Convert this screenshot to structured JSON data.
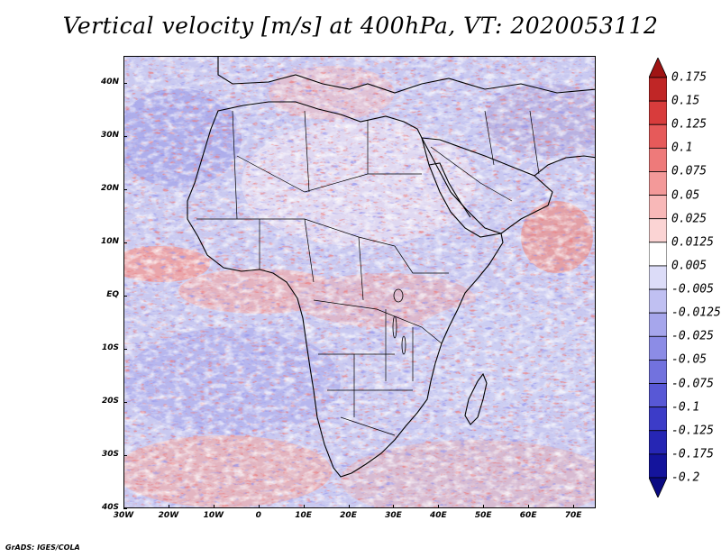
{
  "title": "Vertical velocity [m/s] at 400hPa, VT: 2020053112",
  "credit": "GrADS: IGES/COLA",
  "map": {
    "lat_range": [
      -40,
      45
    ],
    "lon_range": [
      -30,
      75
    ],
    "lat_labels": [
      {
        "value": 40,
        "text": "40N"
      },
      {
        "value": 30,
        "text": "30N"
      },
      {
        "value": 20,
        "text": "20N"
      },
      {
        "value": 10,
        "text": "10N"
      },
      {
        "value": 0,
        "text": "EQ"
      },
      {
        "value": -10,
        "text": "10S"
      },
      {
        "value": -20,
        "text": "20S"
      },
      {
        "value": -30,
        "text": "30S"
      },
      {
        "value": -40,
        "text": "40S"
      }
    ],
    "lon_labels": [
      {
        "value": -30,
        "text": "30W"
      },
      {
        "value": -20,
        "text": "20W"
      },
      {
        "value": -10,
        "text": "10W"
      },
      {
        "value": 0,
        "text": "0"
      },
      {
        "value": 10,
        "text": "10E"
      },
      {
        "value": 20,
        "text": "20E"
      },
      {
        "value": 30,
        "text": "30E"
      },
      {
        "value": 40,
        "text": "40E"
      },
      {
        "value": 50,
        "text": "50E"
      },
      {
        "value": 60,
        "text": "60E"
      },
      {
        "value": 70,
        "text": "70E"
      }
    ]
  },
  "colorbar": {
    "colors": [
      "#a01414",
      "#c02626",
      "#d83c3c",
      "#e65a5a",
      "#ee7a7a",
      "#f39999",
      "#f8b8b8",
      "#fbd4d4",
      "#ffffff",
      "#dcdcf8",
      "#c0c0f2",
      "#a6a6ec",
      "#8c8ce6",
      "#7272de",
      "#5858d6",
      "#3c3cc8",
      "#2626b4",
      "#14149c",
      "#0a0a82"
    ],
    "labels": [
      "0.175",
      "0.15",
      "0.125",
      "0.1",
      "0.075",
      "0.05",
      "0.025",
      "0.0125",
      "0.005",
      "-0.005",
      "-0.0125",
      "-0.025",
      "-0.05",
      "-0.075",
      "-0.1",
      "-0.125",
      "-0.175",
      "-0.2"
    ]
  }
}
